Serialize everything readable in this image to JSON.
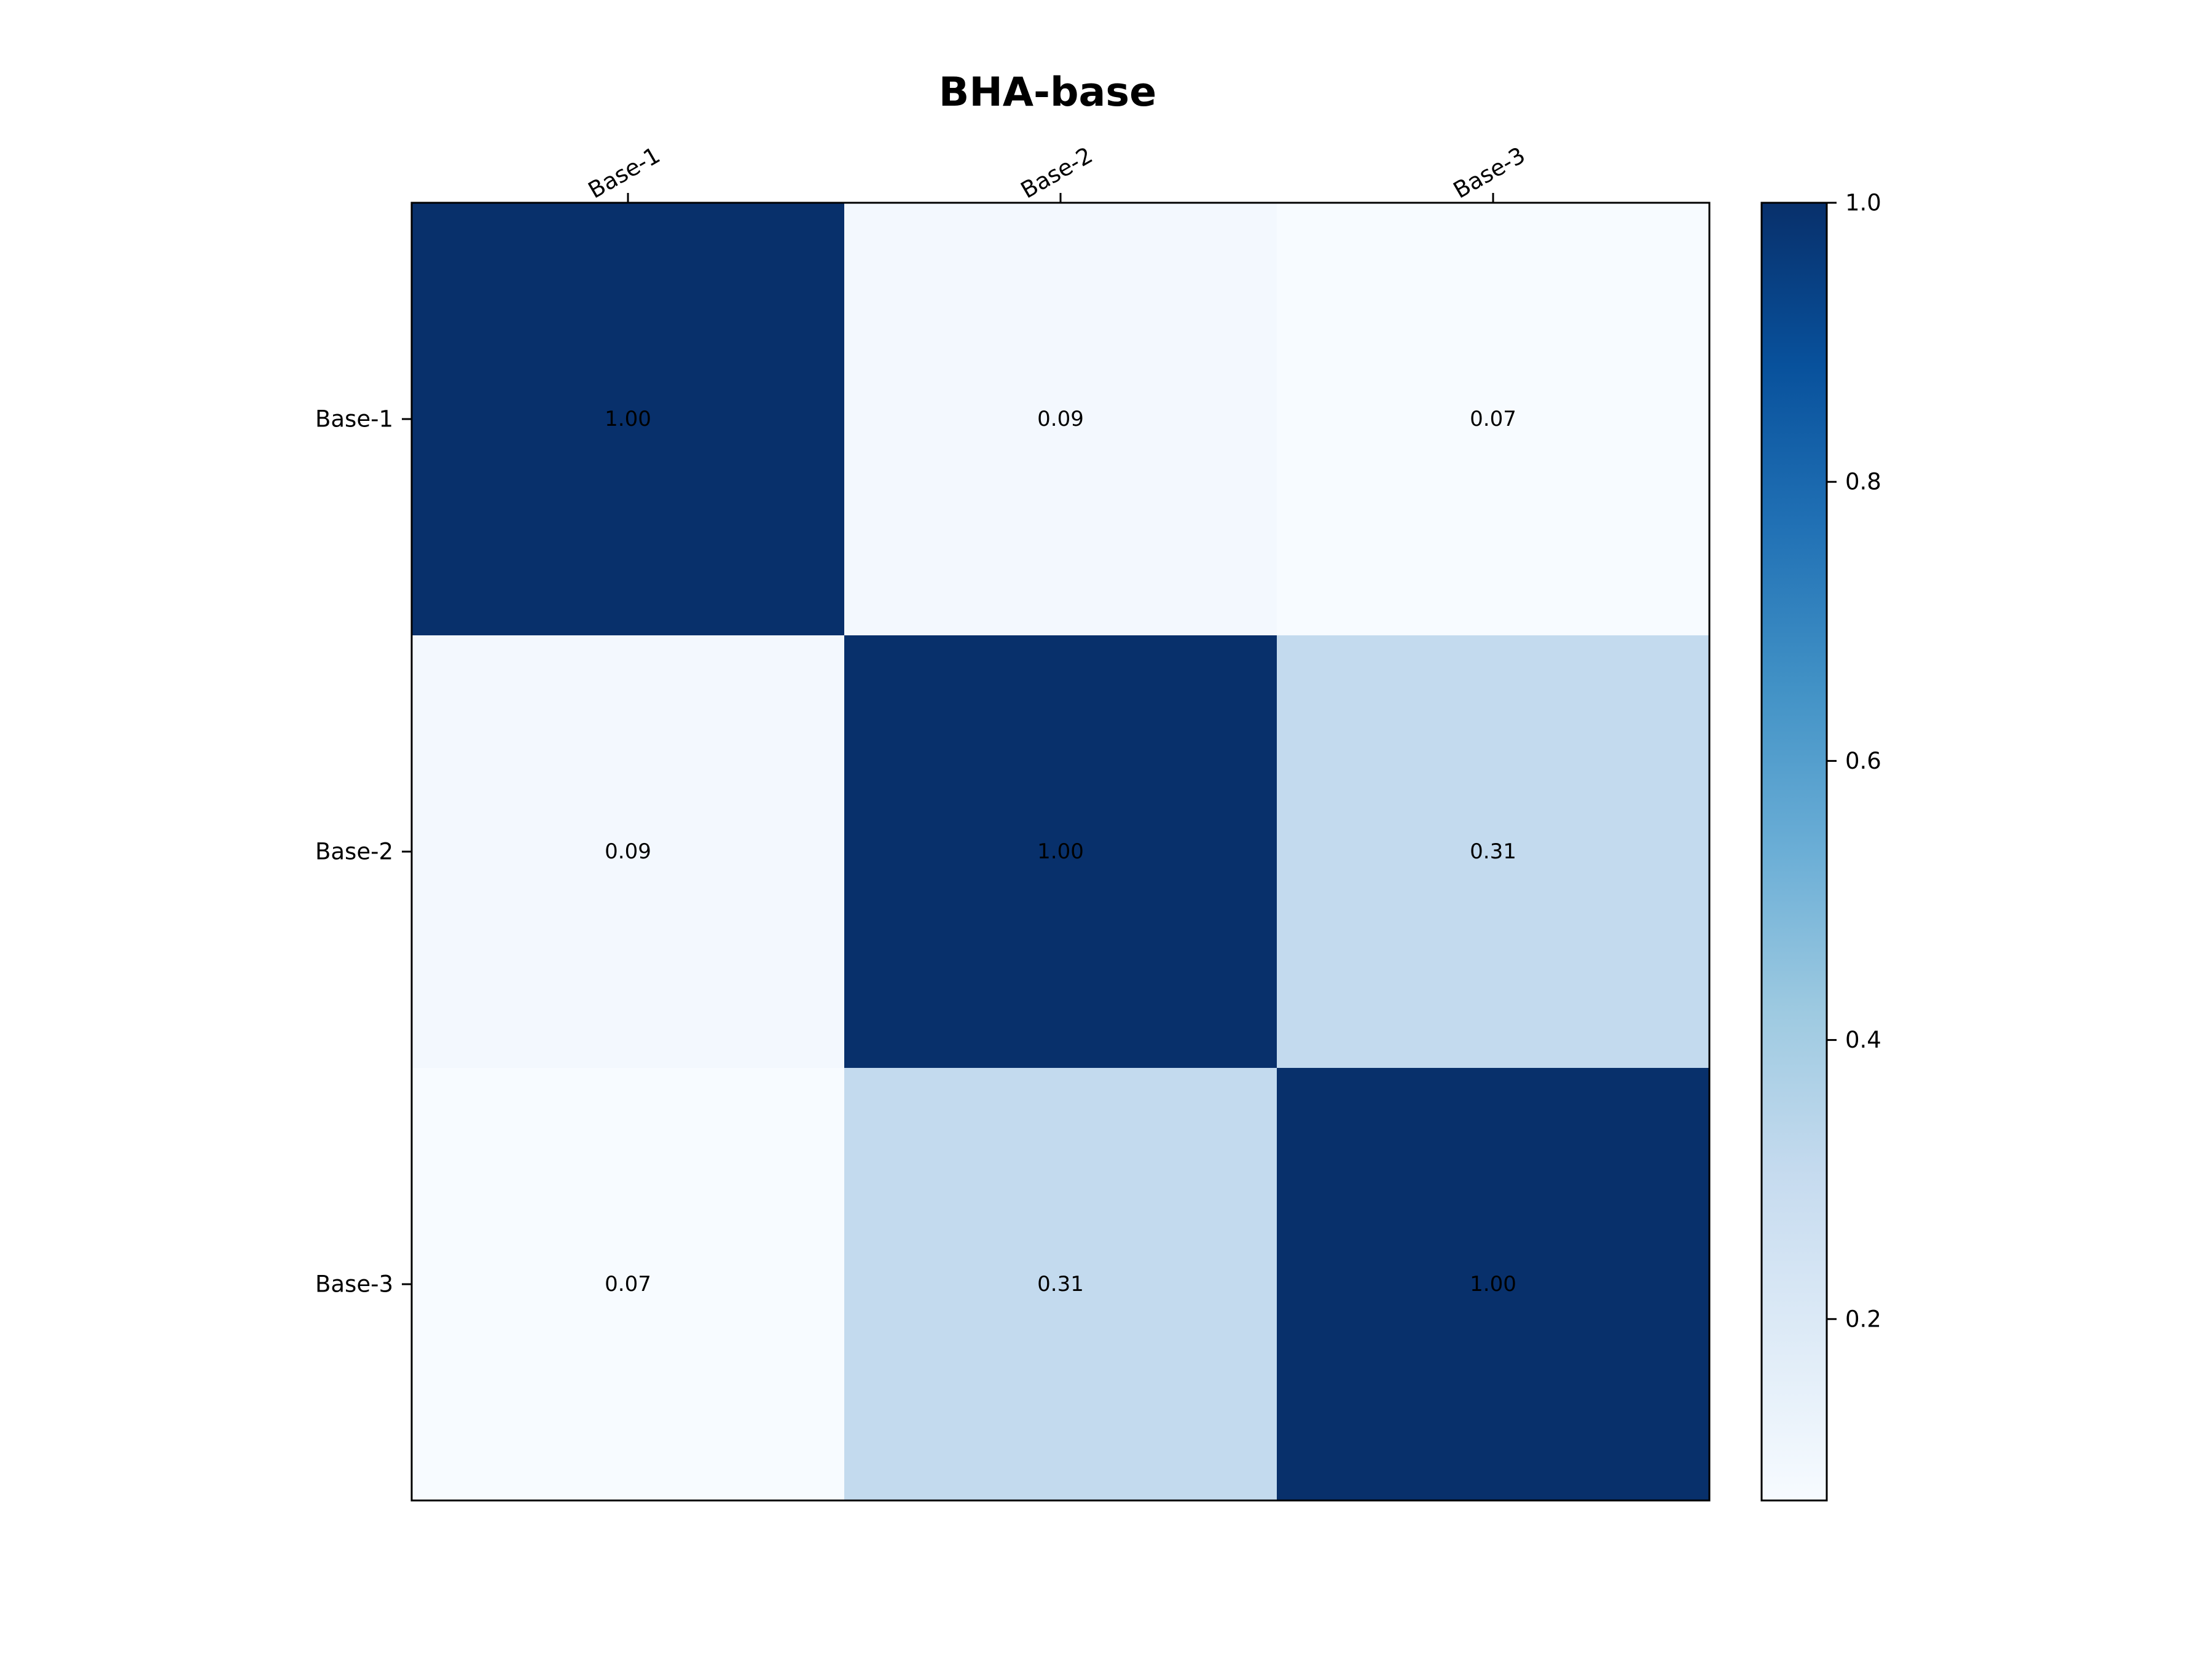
{
  "chart_data": {
    "type": "heatmap",
    "title": "BHA-base",
    "xlabel": "",
    "ylabel": "",
    "x_categories": [
      "Base-1",
      "Base-2",
      "Base-3"
    ],
    "y_categories": [
      "Base-1",
      "Base-2",
      "Base-3"
    ],
    "values": [
      [
        1.0,
        0.09,
        0.07
      ],
      [
        0.09,
        1.0,
        0.31
      ],
      [
        0.07,
        0.31,
        1.0
      ]
    ],
    "value_format": "2 decimals",
    "x_tick_position": "top",
    "x_tick_rotation_deg": 30,
    "colormap": "Blues",
    "colorscale_stops": [
      "#f7fbff",
      "#deebf7",
      "#c6dbef",
      "#9ecae1",
      "#6baed6",
      "#4292c6",
      "#2171b5",
      "#08519c",
      "#08306b"
    ],
    "colorbar": {
      "range": [
        0.07,
        1.0
      ],
      "ticks": [
        0.2,
        0.4,
        0.6,
        0.8,
        1.0
      ],
      "tick_labels": [
        "0.2",
        "0.4",
        "0.6",
        "0.8",
        "1.0"
      ],
      "placement": "right"
    },
    "grid": false,
    "legend": "none"
  }
}
